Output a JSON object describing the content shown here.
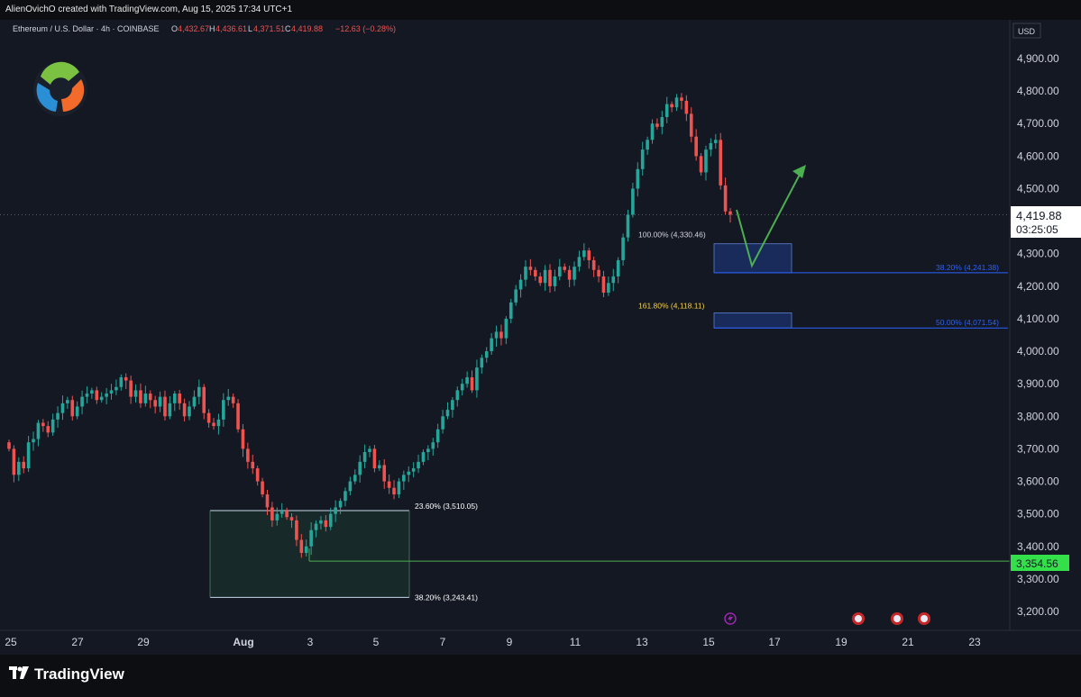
{
  "header": {
    "creator": "AlienOvichO created with TradingView.com, Aug 15, 2025 17:34 UTC+1"
  },
  "symbol_bar": {
    "name": "Ethereum / U.S. Dollar · 4h · COINBASE",
    "open_label": "O",
    "open": "4,432.67",
    "high_label": "H",
    "high": "4,436.61",
    "low_label": "L",
    "low": "4,371.51",
    "close_label": "C",
    "close": "4,419.88",
    "change": "−12.63 (−0.28%)"
  },
  "price_axis": {
    "currency": "USD",
    "last_price": "4,419.88",
    "countdown": "03:25:05",
    "marker_price": "3,354.56"
  },
  "footer": {
    "brand": "TradingView"
  },
  "colors": {
    "up": "#26a69a",
    "down": "#ef5350",
    "accent": "#2962ff",
    "arrow": "#4caf50"
  },
  "chart_data": {
    "type": "candlestick",
    "y_axis": {
      "ticks": [
        "3,200.00",
        "3,300.00",
        "3,400.00",
        "3,500.00",
        "3,600.00",
        "3,700.00",
        "3,800.00",
        "3,900.00",
        "4,000.00",
        "4,100.00",
        "4,200.00",
        "4,300.00",
        "4,400.00",
        "4,500.00",
        "4,600.00",
        "4,700.00",
        "4,800.00",
        "4,900.00"
      ],
      "tick_values": [
        3200,
        3300,
        3400,
        3500,
        3600,
        3700,
        3800,
        3900,
        4000,
        4100,
        4200,
        4300,
        4400,
        4500,
        4600,
        4700,
        4800,
        4900
      ],
      "range": [
        3150,
        4990
      ]
    },
    "x_axis": {
      "ticks": [
        "25",
        "27",
        "29",
        "Aug",
        "3",
        "5",
        "7",
        "9",
        "11",
        "13",
        "15",
        "17",
        "19",
        "21",
        "23"
      ],
      "range": [
        "Jul 25",
        "Aug 23"
      ]
    },
    "candles_close": [
      3700,
      3620,
      3660,
      3640,
      3720,
      3730,
      3780,
      3770,
      3750,
      3790,
      3810,
      3840,
      3850,
      3800,
      3830,
      3860,
      3870,
      3880,
      3850,
      3860,
      3870,
      3880,
      3890,
      3920,
      3910,
      3860,
      3880,
      3840,
      3870,
      3850,
      3830,
      3860,
      3800,
      3840,
      3870,
      3840,
      3800,
      3830,
      3860,
      3890,
      3810,
      3780,
      3770,
      3790,
      3850,
      3860,
      3840,
      3760,
      3700,
      3660,
      3640,
      3600,
      3560,
      3520,
      3480,
      3500,
      3510,
      3490,
      3480,
      3420,
      3380,
      3400,
      3450,
      3470,
      3480,
      3460,
      3500,
      3520,
      3540,
      3570,
      3600,
      3620,
      3660,
      3690,
      3700,
      3640,
      3650,
      3600,
      3580,
      3560,
      3600,
      3620,
      3630,
      3640,
      3660,
      3690,
      3700,
      3720,
      3760,
      3800,
      3820,
      3850,
      3880,
      3900,
      3920,
      3880,
      3950,
      3980,
      4000,
      4040,
      4060,
      4040,
      4100,
      4150,
      4190,
      4220,
      4260,
      4250,
      4230,
      4210,
      4250,
      4200,
      4230,
      4260,
      4250,
      4220,
      4260,
      4290,
      4310,
      4280,
      4250,
      4230,
      4180,
      4210,
      4230,
      4280,
      4350,
      4420,
      4500,
      4560,
      4620,
      4650,
      4700,
      4690,
      4720,
      4760,
      4750,
      4780,
      4770,
      4730,
      4660,
      4600,
      4550,
      4620,
      4640,
      4650,
      4510,
      4430,
      4419.88
    ],
    "annotations": [
      {
        "label": "23.60% (3,510.05)",
        "price": 3510.05
      },
      {
        "label": "38.20% (3,243.41)",
        "price": 3243.41
      },
      {
        "label": "100.00% (4,330.46)",
        "price": 4330.46
      },
      {
        "label": "38.20% (4,241.38)",
        "price": 4241.38
      },
      {
        "label": "161.80% (4,118.11)",
        "price": 4118.11
      },
      {
        "label": "50.00% (4,071.54)",
        "price": 4071.54
      }
    ],
    "horizontal_line": 3354.56,
    "grid": false
  }
}
